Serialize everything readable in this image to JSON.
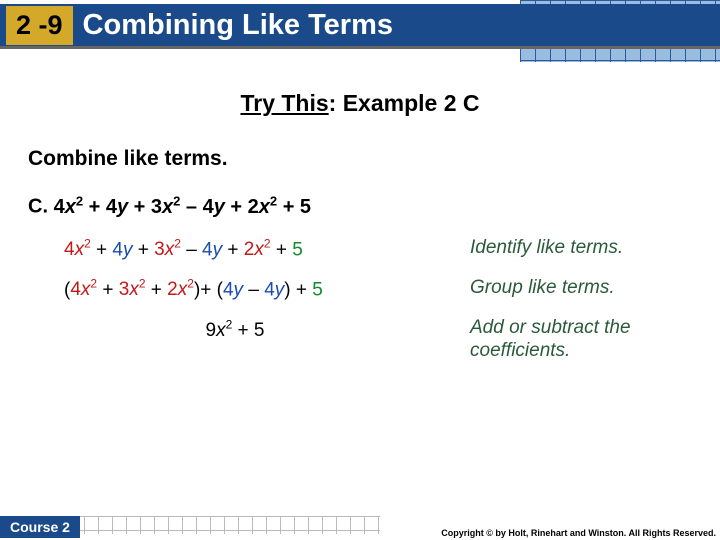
{
  "header": {
    "lesson_number": "2 -9",
    "lesson_title": "Combining Like Terms"
  },
  "subtitle": {
    "underlined": "Try This",
    "rest": ": Example 2 C"
  },
  "instruction": "Combine like terms.",
  "problem": {
    "label": "C.",
    "expression_parts": [
      "4",
      "x",
      "2",
      " + 4",
      "y",
      " + 3",
      "x",
      "2",
      " – 4",
      "y",
      " + 2",
      "x",
      "2",
      " + 5"
    ]
  },
  "steps": [
    {
      "expr_html": "line1",
      "note": "Identify like terms."
    },
    {
      "expr_html": "line2",
      "note": "Group like terms."
    },
    {
      "expr_html": "line3",
      "note": "Add or subtract the coefficients."
    }
  ],
  "footer": {
    "course": "Course 2",
    "copyright": "Copyright © by Holt, Rinehart and Winston. All Rights Reserved."
  },
  "colors": {
    "header_blue": "#1a4a8a",
    "badge_yellow": "#d4a92a",
    "note_green": "#2a5a3a",
    "term_red": "#c41818",
    "term_blue": "#1a4ab0",
    "term_green": "#128a2a"
  }
}
